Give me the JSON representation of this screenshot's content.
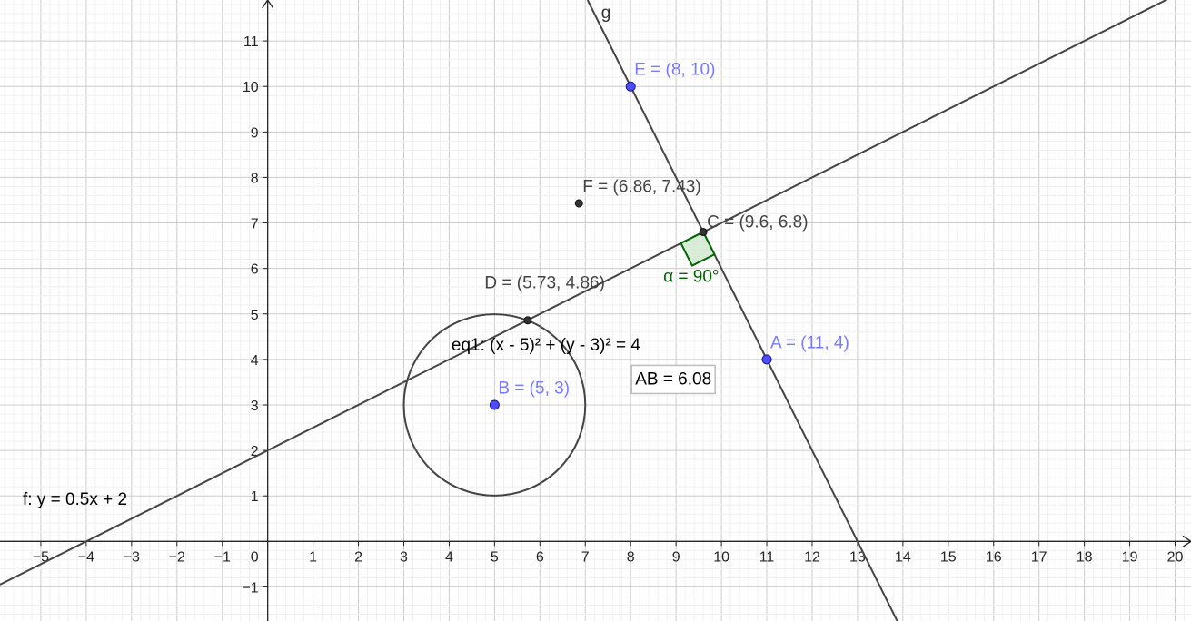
{
  "view": {
    "x_range": [
      -5.9,
      20.35
    ],
    "y_range": [
      -1.75,
      11.9
    ],
    "grid": true,
    "minor_grid_step": 0.2,
    "major_grid_step": 1,
    "colors": {
      "minor_grid": "#f0f0f0",
      "major_grid": "#cccccc",
      "axis": "#252525",
      "construction": "#444444",
      "free_point": "#4d4dff",
      "free_label": "#7a7aff",
      "dependent_point": "#333333",
      "angle": "#006400",
      "angle_fill": "#c8e6c8",
      "label_box_border": "#bdbdbd"
    }
  },
  "axes": {
    "x_ticks": [
      -5,
      -4,
      -3,
      -2,
      -1,
      1,
      2,
      3,
      4,
      5,
      6,
      7,
      8,
      9,
      10,
      11,
      12,
      13,
      14,
      15,
      16,
      17,
      18,
      19,
      20
    ],
    "x_tick_labels": [
      "−5",
      "−4",
      "−3",
      "−2",
      "−1",
      "1",
      "2",
      "3",
      "4",
      "5",
      "6",
      "7",
      "8",
      "9",
      "10",
      "11",
      "12",
      "13",
      "14",
      "15",
      "16",
      "17",
      "18",
      "19",
      "20"
    ],
    "y_ticks": [
      -1,
      1,
      2,
      3,
      4,
      5,
      6,
      7,
      8,
      9,
      10,
      11
    ],
    "y_tick_labels": [
      "−1",
      "1",
      "2",
      "3",
      "4",
      "5",
      "6",
      "7",
      "8",
      "9",
      "10",
      "11"
    ],
    "origin_label": "0"
  },
  "objects": {
    "line_f": {
      "slope": 0.5,
      "intercept": 2,
      "label": "f: y = 0.5x + 2",
      "label_anchor": [
        -5.4,
        0.8
      ]
    },
    "line_g": {
      "through": [
        [
          8,
          10
        ],
        [
          11,
          4
        ]
      ],
      "label": "g",
      "label_anchor": [
        7.35,
        11.5
      ]
    },
    "circle_eq1": {
      "center": [
        5,
        3
      ],
      "radius": 2,
      "label": "eq1: (x - 5)² + (y - 3)² = 4",
      "label_anchor": [
        4.05,
        4.2
      ]
    },
    "points": [
      {
        "name": "E",
        "x": 8,
        "y": 10,
        "label": "E = (8, 10)",
        "type": "free",
        "label_offset": [
          0.08,
          0.25
        ]
      },
      {
        "name": "A",
        "x": 11,
        "y": 4,
        "label": "A = (11, 4)",
        "type": "free",
        "label_offset": [
          0.08,
          0.25
        ]
      },
      {
        "name": "B",
        "x": 5,
        "y": 3,
        "label": "B = (5, 3)",
        "type": "free",
        "label_offset": [
          0.08,
          0.25
        ]
      },
      {
        "name": "C",
        "x": 9.6,
        "y": 6.8,
        "label": "C = (9.6, 6.8)",
        "type": "dependent",
        "label_offset": [
          0.08,
          0.1
        ]
      },
      {
        "name": "D",
        "x": 5.73,
        "y": 4.86,
        "label": "D = (5.73, 4.86)",
        "type": "dependent",
        "label_offset": [
          -0.95,
          0.7
        ]
      },
      {
        "name": "F",
        "x": 6.86,
        "y": 7.43,
        "label": "F = (6.86, 7.43)",
        "type": "dependent",
        "label_offset": [
          0.08,
          0.25
        ]
      }
    ],
    "angle_alpha": {
      "vertex": [
        9.6,
        6.8
      ],
      "label": "α = 90°",
      "label_anchor": [
        8.72,
        5.7
      ]
    },
    "text_AB": {
      "label": "AB = 6.08",
      "anchor": [
        8.1,
        3.45
      ]
    }
  }
}
